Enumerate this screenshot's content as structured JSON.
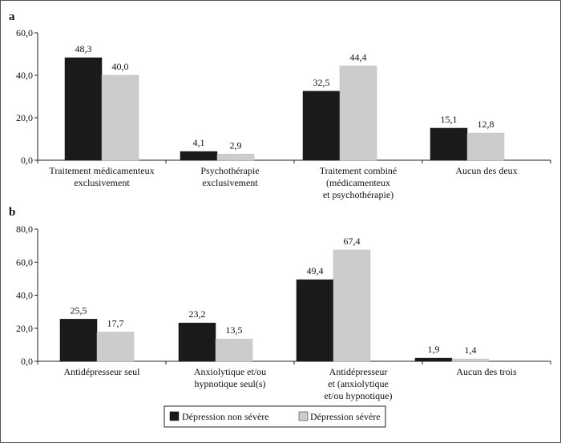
{
  "chart_data": [
    {
      "type": "bar",
      "panel": "a",
      "categories": [
        [
          "Traitement médicamenteux",
          "exclusivement"
        ],
        [
          "Psychothérapie",
          "exclusivement"
        ],
        [
          "Traitement combiné",
          "(médicamenteux",
          "et psychothérapie)"
        ],
        [
          "Aucun des deux"
        ]
      ],
      "series": [
        {
          "name": "Dépression non sévère",
          "color": "#1a1a1a",
          "values": [
            48.3,
            4.1,
            32.5,
            15.1
          ],
          "labels": [
            "48,3",
            "4,1",
            "32,5",
            "15,1"
          ]
        },
        {
          "name": "Dépression sévère",
          "color": "#cccccc",
          "values": [
            40.0,
            2.9,
            44.4,
            12.8
          ],
          "labels": [
            "40,0",
            "2,9",
            "44,4",
            "12,8"
          ]
        }
      ],
      "ylim": [
        0,
        60
      ],
      "yticks": [
        "0,0",
        "20,0",
        "40,0",
        "60,0"
      ],
      "ytick_values": [
        0,
        20,
        40,
        60
      ]
    },
    {
      "type": "bar",
      "panel": "b",
      "categories": [
        [
          "Antidépresseur seul"
        ],
        [
          "Anxiolytique et/ou",
          "hypnotique seul(s)"
        ],
        [
          "Antidépresseur",
          "et (anxiolytique",
          "et/ou hypnotique)"
        ],
        [
          "Aucun des trois"
        ]
      ],
      "series": [
        {
          "name": "Dépression non sévère",
          "color": "#1a1a1a",
          "values": [
            25.5,
            23.2,
            49.4,
            1.9
          ],
          "labels": [
            "25,5",
            "23,2",
            "49,4",
            "1,9"
          ]
        },
        {
          "name": "Dépression sévère",
          "color": "#cccccc",
          "values": [
            17.7,
            13.5,
            67.4,
            1.4
          ],
          "labels": [
            "17,7",
            "13,5",
            "67,4",
            "1,4"
          ]
        }
      ],
      "ylim": [
        0,
        80
      ],
      "yticks": [
        "0,0",
        "20,0",
        "40,0",
        "60,0",
        "80,0"
      ],
      "ytick_values": [
        0,
        20,
        40,
        60,
        80
      ]
    }
  ],
  "legend": {
    "items": [
      {
        "label": "Dépression non sévère",
        "color": "#1a1a1a"
      },
      {
        "label": "Dépression sévère",
        "color": "#cccccc"
      }
    ]
  }
}
